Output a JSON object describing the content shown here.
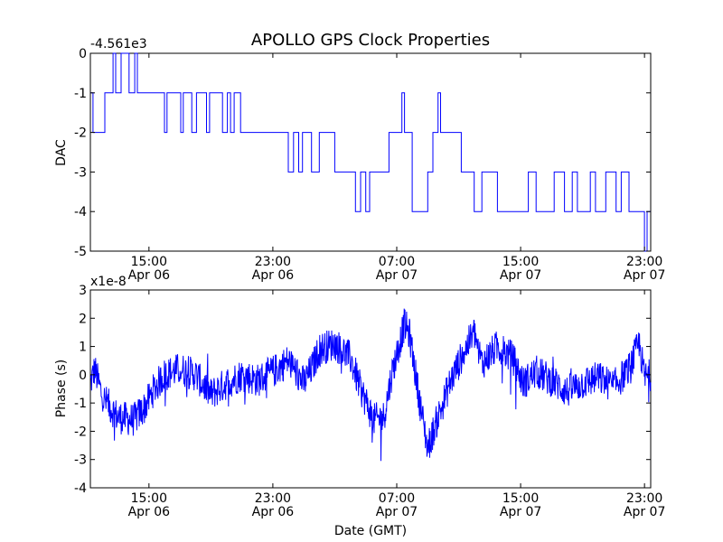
{
  "title": "APOLLO GPS Clock Properties",
  "colors": {
    "series": "#0000ff",
    "axes": "#000000",
    "background": "#ffffff"
  },
  "x_tick_labels": [
    {
      "time": "15:00",
      "date": "Apr 06"
    },
    {
      "time": "23:00",
      "date": "Apr 06"
    },
    {
      "time": "07:00",
      "date": "Apr 07"
    },
    {
      "time": "15:00",
      "date": "Apr 07"
    },
    {
      "time": "23:00",
      "date": "Apr 07"
    }
  ],
  "xlabel": "Date (GMT)",
  "chart_data": [
    {
      "type": "line",
      "ylabel": "DAC",
      "offset_label": "-4.561e3",
      "xlim": [
        "Apr 06 11:13",
        "Apr 07 23:24"
      ],
      "ylim": [
        -5,
        0
      ],
      "yticks": [
        "-5",
        "-4",
        "-3",
        "-2",
        "-1",
        "0"
      ],
      "grid": false,
      "series": [
        {
          "color": "#0000ff",
          "points": [
            [
              "Apr 06 11:13",
              -1
            ],
            [
              "Apr 06 11:23",
              -2
            ],
            [
              "Apr 06 12:09",
              -1
            ],
            [
              "Apr 06 12:41",
              0
            ],
            [
              "Apr 06 12:51",
              -1
            ],
            [
              "Apr 06 13:12",
              0
            ],
            [
              "Apr 06 13:43",
              -1
            ],
            [
              "Apr 06 14:05",
              0
            ],
            [
              "Apr 06 14:15",
              -1
            ],
            [
              "Apr 06 16:00",
              -2
            ],
            [
              "Apr 06 16:10",
              -1
            ],
            [
              "Apr 06 17:03",
              -2
            ],
            [
              "Apr 06 17:13",
              -1
            ],
            [
              "Apr 06 17:46",
              -2
            ],
            [
              "Apr 06 18:04",
              -1
            ],
            [
              "Apr 06 18:43",
              -2
            ],
            [
              "Apr 06 18:55",
              -1
            ],
            [
              "Apr 06 19:45",
              -2
            ],
            [
              "Apr 06 20:04",
              -1
            ],
            [
              "Apr 06 20:16",
              -2
            ],
            [
              "Apr 06 20:30",
              -1
            ],
            [
              "Apr 06 20:55",
              -2
            ],
            [
              "Apr 06 24:00",
              -3
            ],
            [
              "Apr 07 00:20",
              -2
            ],
            [
              "Apr 07 00:40",
              -3
            ],
            [
              "Apr 07 00:55",
              -2
            ],
            [
              "Apr 07 01:30",
              -3
            ],
            [
              "Apr 07 02:00",
              -2
            ],
            [
              "Apr 07 03:00",
              -3
            ],
            [
              "Apr 07 04:20",
              -4
            ],
            [
              "Apr 07 04:40",
              -3
            ],
            [
              "Apr 07 05:00",
              -4
            ],
            [
              "Apr 07 05:15",
              -3
            ],
            [
              "Apr 07 06:30",
              -2
            ],
            [
              "Apr 07 07:20",
              -1
            ],
            [
              "Apr 07 07:30",
              -2
            ],
            [
              "Apr 07 08:00",
              -4
            ],
            [
              "Apr 07 09:00",
              -3
            ],
            [
              "Apr 07 09:20",
              -2
            ],
            [
              "Apr 07 09:40",
              -1
            ],
            [
              "Apr 07 09:50",
              -2
            ],
            [
              "Apr 07 11:10",
              -3
            ],
            [
              "Apr 07 12:00",
              -4
            ],
            [
              "Apr 07 12:30",
              -3
            ],
            [
              "Apr 07 13:30",
              -4
            ],
            [
              "Apr 07 15:30",
              -3
            ],
            [
              "Apr 07 16:00",
              -4
            ],
            [
              "Apr 07 17:10",
              -3
            ],
            [
              "Apr 07 17:50",
              -4
            ],
            [
              "Apr 07 18:20",
              -3
            ],
            [
              "Apr 07 18:40",
              -4
            ],
            [
              "Apr 07 19:30",
              -3
            ],
            [
              "Apr 07 19:50",
              -4
            ],
            [
              "Apr 07 20:30",
              -3
            ],
            [
              "Apr 07 21:10",
              -4
            ],
            [
              "Apr 07 21:30",
              -3
            ],
            [
              "Apr 07 22:00",
              -4
            ],
            [
              "Apr 07 23:00",
              -5
            ],
            [
              "Apr 07 23:10",
              -4
            ],
            [
              "Apr 07 23:24",
              -4
            ]
          ]
        }
      ]
    },
    {
      "type": "line",
      "ylabel": "Phase (s)",
      "offset_label": "x1e-8",
      "xlim": [
        "Apr 06 11:13",
        "Apr 07 23:24"
      ],
      "ylim": [
        -4,
        3
      ],
      "yticks": [
        "-4",
        "-3",
        "-2",
        "-1",
        "0",
        "1",
        "2",
        "3"
      ],
      "grid": false,
      "series": [
        {
          "color": "#0000ff",
          "points": [
            [
              "Apr 06 11:13",
              -0.3
            ],
            [
              "Apr 06 11:30",
              0.2
            ],
            [
              "Apr 06 12:00",
              -0.8
            ],
            [
              "Apr 06 13:00",
              -1.5
            ],
            [
              "Apr 06 14:00",
              -1.6
            ],
            [
              "Apr 06 14:40",
              -1.2
            ],
            [
              "Apr 06 15:20",
              -0.5
            ],
            [
              "Apr 06 16:00",
              0.0
            ],
            [
              "Apr 06 17:00",
              0.2
            ],
            [
              "Apr 06 18:00",
              0.0
            ],
            [
              "Apr 06 19:00",
              -0.7
            ],
            [
              "Apr 06 20:00",
              -0.3
            ],
            [
              "Apr 06 21:00",
              0.0
            ],
            [
              "Apr 06 22:00",
              -0.2
            ],
            [
              "Apr 06 23:00",
              0.1
            ],
            [
              "Apr 06 24:00",
              0.5
            ],
            [
              "Apr 07 00:30",
              0.1
            ],
            [
              "Apr 07 01:00",
              -0.3
            ],
            [
              "Apr 07 01:30",
              0.2
            ],
            [
              "Apr 07 02:00",
              0.9
            ],
            [
              "Apr 07 03:00",
              1.1
            ],
            [
              "Apr 07 04:00",
              0.6
            ],
            [
              "Apr 07 04:40",
              -0.5
            ],
            [
              "Apr 07 05:30",
              -1.6
            ],
            [
              "Apr 07 06:10",
              -1.5
            ],
            [
              "Apr 07 06:40",
              0.0
            ],
            [
              "Apr 07 07:30",
              1.8
            ],
            [
              "Apr 07 07:50",
              1.4
            ],
            [
              "Apr 07 08:30",
              -1.0
            ],
            [
              "Apr 07 09:00",
              -2.6
            ],
            [
              "Apr 07 09:40",
              -1.5
            ],
            [
              "Apr 07 10:30",
              -0.2
            ],
            [
              "Apr 07 11:20",
              0.8
            ],
            [
              "Apr 07 12:00",
              1.5
            ],
            [
              "Apr 07 12:30",
              0.4
            ],
            [
              "Apr 07 13:30",
              1.0
            ],
            [
              "Apr 07 14:30",
              0.6
            ],
            [
              "Apr 07 15:10",
              -0.3
            ],
            [
              "Apr 07 16:00",
              0.1
            ],
            [
              "Apr 07 17:00",
              -0.2
            ],
            [
              "Apr 07 18:00",
              -0.6
            ],
            [
              "Apr 07 19:00",
              -0.3
            ],
            [
              "Apr 07 20:00",
              -0.1
            ],
            [
              "Apr 07 21:00",
              -0.4
            ],
            [
              "Apr 07 22:00",
              0.2
            ],
            [
              "Apr 07 22:40",
              1.1
            ],
            [
              "Apr 07 23:00",
              -0.1
            ],
            [
              "Apr 07 23:24",
              0.0
            ]
          ]
        }
      ]
    }
  ]
}
